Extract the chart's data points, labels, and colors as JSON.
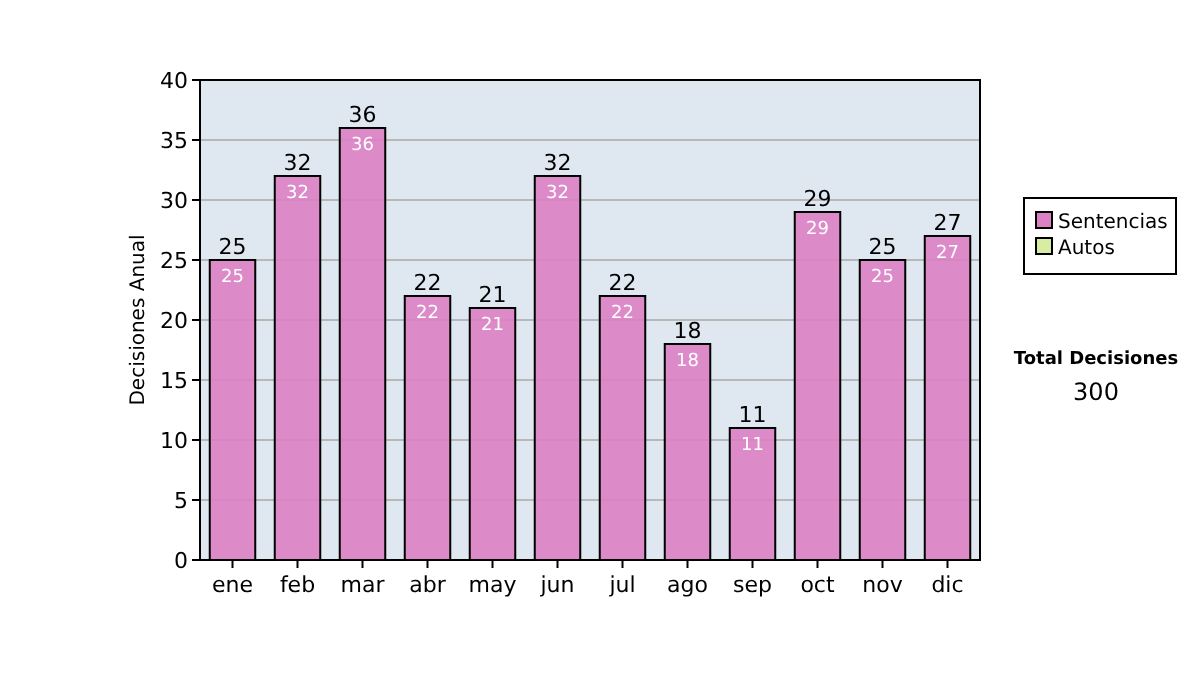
{
  "chart_data": {
    "type": "bar",
    "stacked": true,
    "ylabel": "Decisiones Anual",
    "categories": [
      "ene",
      "feb",
      "mar",
      "abr",
      "may",
      "jun",
      "jul",
      "ago",
      "sep",
      "oct",
      "nov",
      "dic"
    ],
    "series": [
      {
        "name": "Sentencias",
        "color": "#dd80c4",
        "values": [
          25,
          32,
          36,
          22,
          21,
          32,
          22,
          18,
          11,
          29,
          25,
          27
        ],
        "value_labels": [
          "25",
          "32",
          "36",
          "22",
          "21",
          "32",
          "22",
          "18",
          "11",
          "29",
          "25",
          "27"
        ]
      },
      {
        "name": "Autos",
        "color": "#d8eca4",
        "values": [
          0,
          0,
          0,
          0,
          0,
          0,
          0,
          0,
          0,
          0,
          0,
          0
        ]
      }
    ],
    "totals": [
      "25",
      "32",
      "36",
      "22",
      "21",
      "32",
      "22",
      "18",
      "11",
      "29",
      "25",
      "27"
    ],
    "ylim": [
      0,
      40
    ],
    "yticks": [
      0,
      5,
      10,
      15,
      20,
      25,
      30,
      35,
      40
    ],
    "grid": "y",
    "legend": "right",
    "annotations": [
      "Total Decisiones",
      "300"
    ]
  }
}
